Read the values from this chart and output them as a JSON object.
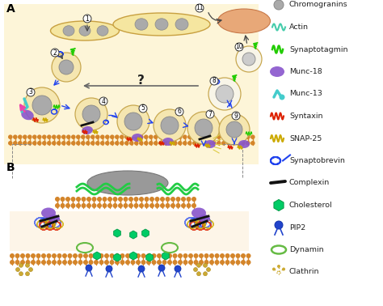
{
  "bg_color": "#ffffff",
  "panel_a_bg": "#fdf5d8",
  "vesicle_fill": "#f5e6b0",
  "vesicle_outline": "#c8a850",
  "granule_color": "#aaaaaa",
  "granule_outline": "#888888",
  "lipid_color": "#d4852a",
  "lipid_fill": "#f5e6b0",
  "large_vesicle_fill": "#f5e6a0",
  "large_vesicle_outline": "#c8a040",
  "orange_blob_fill": "#e8a878",
  "orange_blob_outline": "#c87848",
  "munc18_color": "#8855cc",
  "munc13_color": "#cc44aa",
  "munc13_cyan": "#44cccc",
  "syntaxin_color": "#dd2200",
  "snap25_color": "#ccaa00",
  "synaptobrevin_color": "#2244ee",
  "complexin_color": "#111111",
  "actin_color": "#22cc44",
  "actin_light": "#44ccaa",
  "synaptotagmin_color": "#22cc00",
  "cholesterol_color": "#00cc66",
  "pip2_color": "#2244cc",
  "dynamin_color": "#66bb44",
  "clathrin_color": "#ccaa33",
  "arrow_color": "#444444",
  "blue_arrow": "#2244ee",
  "gray_arrow": "#666666",
  "legend_items": [
    {
      "label": "Chromogranins",
      "color": "#aaaaaa",
      "type": "circle"
    },
    {
      "label": "Actin",
      "color": "#44ccaa",
      "type": "actin"
    },
    {
      "label": "Synaptotagmin",
      "color": "#22cc00",
      "type": "synaptotagmin"
    },
    {
      "label": "Munc-18",
      "color": "#8855cc",
      "type": "blob"
    },
    {
      "label": "Munc-13",
      "color": "#cc44aa",
      "type": "munc13"
    },
    {
      "label": "Syntaxin",
      "color": "#dd2200",
      "type": "coil"
    },
    {
      "label": "SNAP-25",
      "color": "#ccaa00",
      "type": "coil"
    },
    {
      "label": "Synaptobrevin",
      "color": "#2244ee",
      "type": "loop"
    },
    {
      "label": "Complexin",
      "color": "#111111",
      "type": "line"
    },
    {
      "label": "Cholesterol",
      "color": "#00cc66",
      "type": "hexagon"
    },
    {
      "label": "PIP2",
      "color": "#2244cc",
      "type": "pip2"
    },
    {
      "label": "Dynamin",
      "color": "#66bb44",
      "type": "dynamin"
    },
    {
      "label": "Clathrin",
      "color": "#ccaa33",
      "type": "clathrin"
    }
  ]
}
